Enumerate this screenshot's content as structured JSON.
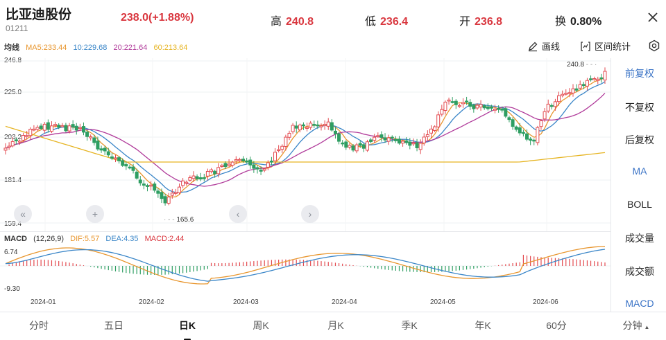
{
  "header": {
    "title": "比亚迪股份",
    "code": "01211",
    "price": "238.0(+1.88%)",
    "high_label": "高",
    "high_value": "240.8",
    "low_label": "低",
    "low_value": "236.4",
    "open_label": "开",
    "open_value": "236.8",
    "turnover_label": "换",
    "turnover_value": "0.80%"
  },
  "ma": {
    "label": "均线",
    "ma5": "MA5:233.44",
    "ma10": "10:229.68",
    "ma20": "20:221.64",
    "ma60": "60:213.64",
    "colors": {
      "ma5": "#e8962e",
      "ma10": "#3a86c8",
      "ma20": "#b03a9a",
      "ma60": "#e6b422"
    }
  },
  "toolbar": {
    "draw_label": "画线",
    "stats_label": "区间统计"
  },
  "price_axis": [
    "246.8",
    "225.0",
    "203.2",
    "181.4",
    "159.4"
  ],
  "annotations": {
    "high": "240.8",
    "low": "165.6"
  },
  "macd": {
    "label": "MACD",
    "params": "(12,26,9)",
    "dif": "DIF:5.57",
    "dea": "DEA:4.35",
    "macd": "MACD:2.44",
    "axis_top": "6.74",
    "axis_bottom": "-9.30"
  },
  "dates": [
    "2024-01",
    "2024-02",
    "2024-03",
    "2024-04",
    "2024-05",
    "2024-06"
  ],
  "side_menu": {
    "items": [
      "前复权",
      "不复权",
      "后复权",
      "MA",
      "BOLL",
      "成交量",
      "成交额",
      "MACD"
    ]
  },
  "bottom_tabs": [
    "分时",
    "五日",
    "日K",
    "周K",
    "月K",
    "季K",
    "年K",
    "60分",
    "分钟"
  ],
  "colors": {
    "up": "#e34a4f",
    "down": "#2e9e62",
    "accent": "#3a73c6"
  }
}
